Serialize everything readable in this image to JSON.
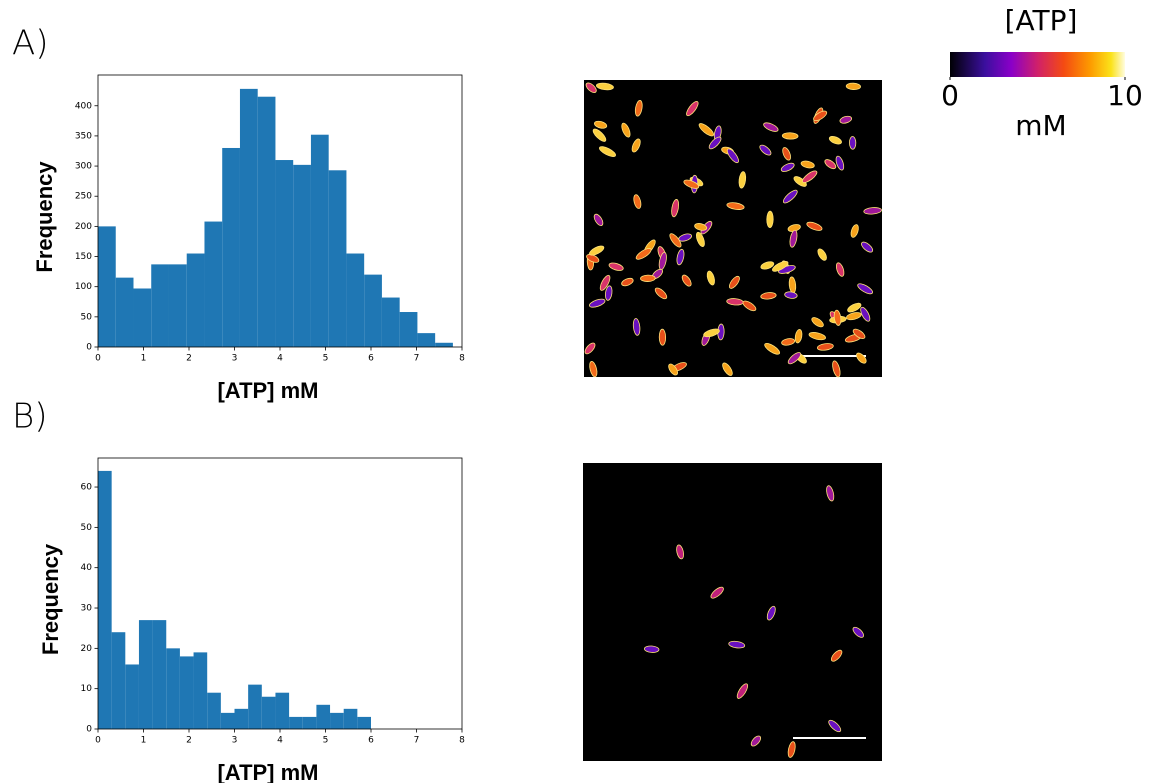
{
  "chart_data": [
    {
      "type": "histogram",
      "label": "A)",
      "x_label": "[ATP] mM",
      "y_label": "Frequency",
      "color": "#1f77b4",
      "bins": [
        0,
        0.39,
        0.78,
        1.17,
        1.56,
        1.95,
        2.34,
        2.73,
        3.12,
        3.51,
        3.9,
        4.29,
        4.68,
        5.07,
        5.46,
        5.85,
        6.24,
        6.63,
        7.02,
        7.41,
        7.8
      ],
      "values": [
        200,
        115,
        97,
        137,
        137,
        155,
        208,
        330,
        428,
        415,
        310,
        302,
        352,
        293,
        155,
        120,
        82,
        58,
        23,
        7
      ],
      "xlim": [
        0,
        8
      ],
      "ylim": [
        0,
        451
      ],
      "xticks": [
        0,
        1,
        2,
        3,
        4,
        5,
        6,
        7,
        8
      ],
      "yticks": [
        0,
        50,
        100,
        150,
        200,
        250,
        300,
        350,
        400
      ]
    },
    {
      "type": "histogram",
      "label": "B)",
      "x_label": "[ATP] mM",
      "y_label": "Frequency",
      "color": "#1f77b4",
      "bins": [
        0,
        0.3,
        0.6,
        0.9,
        1.2,
        1.5,
        1.8,
        2.1,
        2.4,
        2.7,
        3,
        3.3,
        3.6,
        3.9,
        4.2,
        4.5,
        4.8,
        5.1,
        5.4,
        5.7,
        6
      ],
      "values": [
        64,
        24,
        16,
        27,
        27,
        20,
        18,
        19,
        9,
        4,
        5,
        11,
        8,
        9,
        3,
        3,
        6,
        4,
        5,
        3
      ],
      "xlim": [
        0,
        8
      ],
      "ylim": [
        0,
        67.2
      ],
      "xticks": [
        0,
        1,
        2,
        3,
        4,
        5,
        6,
        7,
        8
      ],
      "yticks": [
        0,
        10,
        20,
        30,
        40,
        50,
        60
      ]
    }
  ],
  "colorbar": {
    "title": "[ATP]",
    "unit": "mM",
    "lim": [
      0,
      10
    ],
    "ticks": [
      0,
      10
    ]
  }
}
